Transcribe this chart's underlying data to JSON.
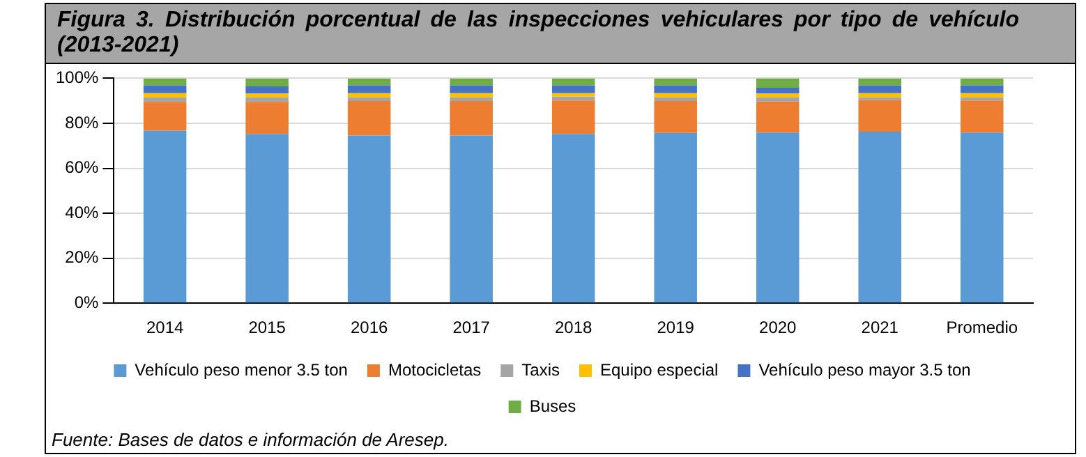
{
  "chart_data": {
    "type": "bar",
    "title": "Figura 3. Distribución porcentual de las inspecciones vehiculares por tipo de vehículo (2013-2021)",
    "categories": [
      "2014",
      "2015",
      "2016",
      "2017",
      "2018",
      "2019",
      "2020",
      "2021",
      "Promedio"
    ],
    "stacked": true,
    "series": [
      {
        "name": "Vehículo peso menor 3.5 ton",
        "color": "#5b9bd5",
        "values": [
          76.7,
          75.3,
          74.6,
          74.6,
          75.3,
          75.7,
          75.9,
          76.3,
          75.9
        ]
      },
      {
        "name": "Motocicletas",
        "color": "#ed7d31",
        "values": [
          12.8,
          14.2,
          15.3,
          15.3,
          14.8,
          14.2,
          13.8,
          14.0,
          14.2
        ]
      },
      {
        "name": "Taxis",
        "color": "#a5a5a5",
        "values": [
          2.0,
          2.0,
          1.6,
          1.6,
          1.7,
          1.6,
          1.8,
          1.2,
          1.4
        ]
      },
      {
        "name": "Equipo especial",
        "color": "#ffc000",
        "values": [
          1.9,
          1.7,
          1.9,
          1.9,
          1.6,
          1.9,
          1.7,
          1.9,
          1.9
        ]
      },
      {
        "name": "Vehículo peso mayor 3.5 ton",
        "color": "#4472c4",
        "values": [
          3.5,
          3.2,
          3.5,
          3.5,
          3.5,
          3.5,
          2.6,
          3.5,
          3.5
        ]
      },
      {
        "name": "Buses",
        "color": "#70ad47",
        "values": [
          3.1,
          3.6,
          3.1,
          3.1,
          3.1,
          3.1,
          4.2,
          3.1,
          3.1
        ]
      }
    ],
    "ylim": [
      0,
      100
    ],
    "yticks": [
      {
        "value": 0,
        "label": "0%"
      },
      {
        "value": 20,
        "label": "20%"
      },
      {
        "value": 40,
        "label": "40%"
      },
      {
        "value": 60,
        "label": "60%"
      },
      {
        "value": 80,
        "label": "80%"
      },
      {
        "value": 100,
        "label": "100%"
      }
    ],
    "grid": "y",
    "legend": "bottom",
    "annotations": [
      "Fuente: Bases de datos e información de Aresep."
    ]
  }
}
